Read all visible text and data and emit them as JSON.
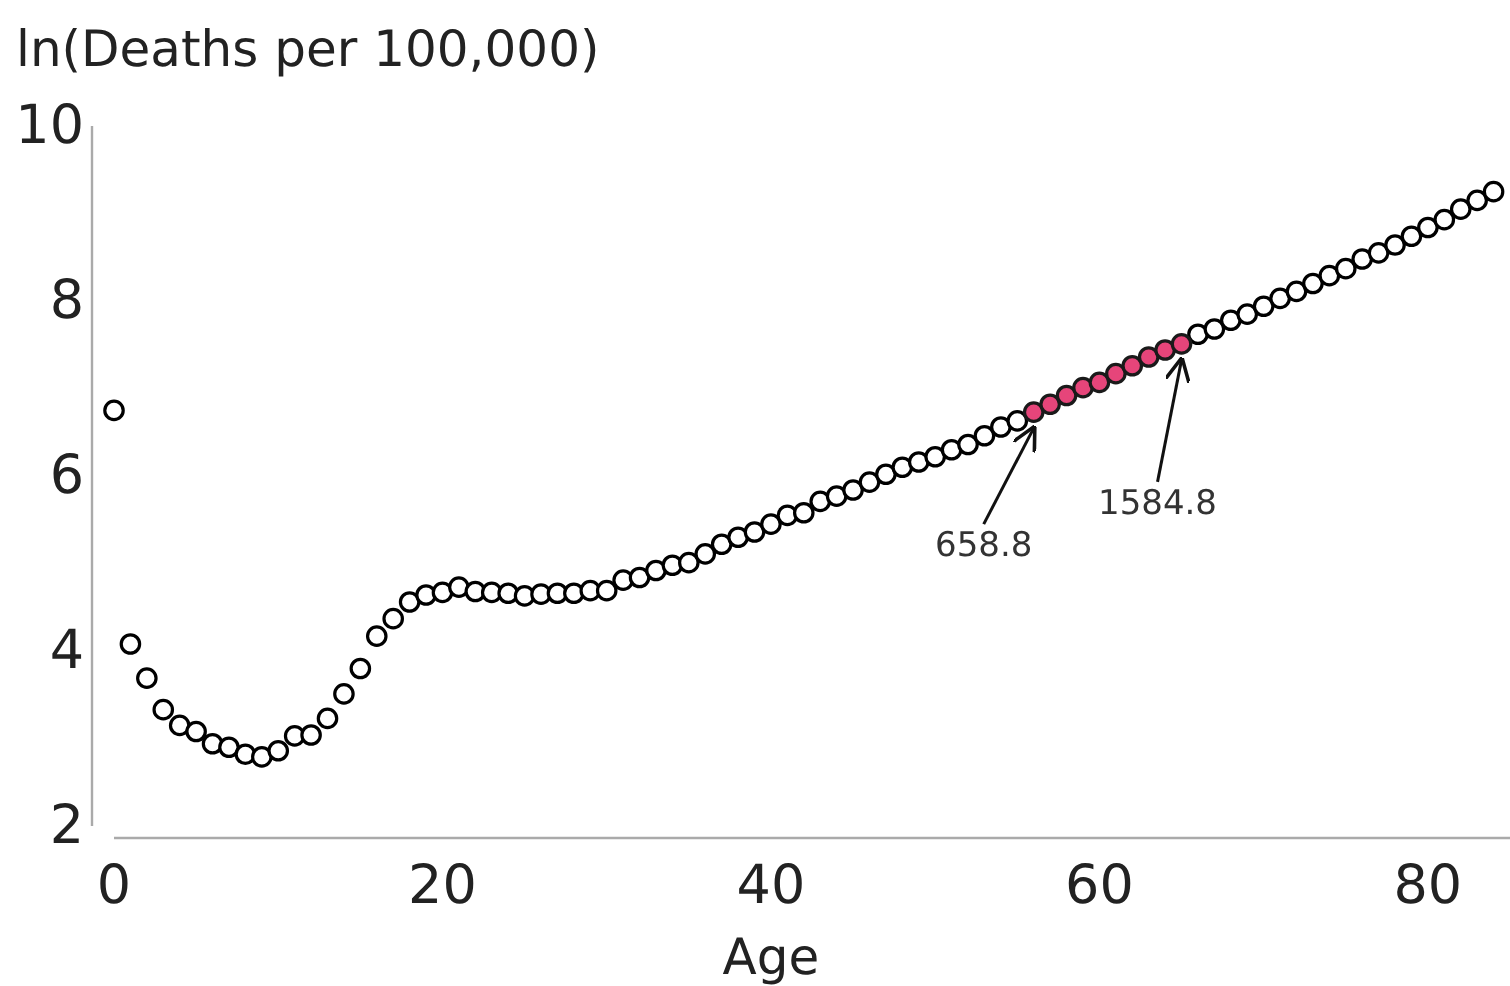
{
  "chart_data": {
    "type": "scatter",
    "ylabel": "ln(Deaths per 100,000)",
    "xlabel": "Age",
    "xlim": [
      0,
      85
    ],
    "ylim": [
      2,
      10
    ],
    "xticks": [
      0,
      20,
      40,
      60,
      80
    ],
    "yticks": [
      2,
      4,
      6,
      8,
      10
    ],
    "marker": "circle",
    "series": [
      {
        "color": "#000000",
        "x": [
          0,
          1,
          2,
          3,
          4,
          5,
          6,
          7,
          8,
          9,
          10,
          11,
          12,
          13,
          14,
          15,
          16,
          17,
          18,
          19,
          20,
          21,
          22,
          23,
          24,
          25,
          26,
          27,
          28,
          29,
          30,
          31,
          32,
          33,
          34,
          35,
          36,
          37,
          38,
          39,
          40,
          41,
          42,
          43,
          44,
          45,
          46,
          47,
          48,
          49,
          50,
          51,
          52,
          53,
          54,
          55,
          66,
          67,
          68,
          69,
          70,
          71,
          72,
          73,
          74,
          75,
          76,
          77,
          78,
          79,
          80,
          81,
          82,
          83,
          84
        ],
        "values": [
          6.75,
          4.08,
          3.69,
          3.33,
          3.15,
          3.08,
          2.94,
          2.9,
          2.82,
          2.79,
          2.86,
          3.03,
          3.04,
          3.23,
          3.51,
          3.8,
          4.17,
          4.37,
          4.56,
          4.64,
          4.67,
          4.73,
          4.68,
          4.67,
          4.66,
          4.63,
          4.65,
          4.66,
          4.66,
          4.69,
          4.69,
          4.81,
          4.84,
          4.92,
          4.98,
          5.01,
          5.11,
          5.22,
          5.3,
          5.36,
          5.45,
          5.55,
          5.58,
          5.71,
          5.77,
          5.84,
          5.93,
          6.02,
          6.1,
          6.16,
          6.22,
          6.3,
          6.36,
          6.46,
          6.56,
          6.63,
          7.62,
          7.68,
          7.78,
          7.85,
          7.94,
          8.03,
          8.11,
          8.2,
          8.29,
          8.37,
          8.48,
          8.55,
          8.64,
          8.74,
          8.84,
          8.93,
          9.05,
          9.15,
          9.25
        ]
      },
      {
        "color": "#e6457a",
        "x": [
          56,
          57,
          58,
          59,
          60,
          61,
          62,
          63,
          64,
          65
        ],
        "values": [
          6.73,
          6.82,
          6.92,
          7.01,
          7.07,
          7.17,
          7.26,
          7.36,
          7.44,
          7.51
        ]
      }
    ],
    "annotations": [
      {
        "text": "658.8",
        "x": 56,
        "y": 6.73
      },
      {
        "text": "1584.8",
        "x": 65,
        "y": 7.51
      }
    ]
  }
}
